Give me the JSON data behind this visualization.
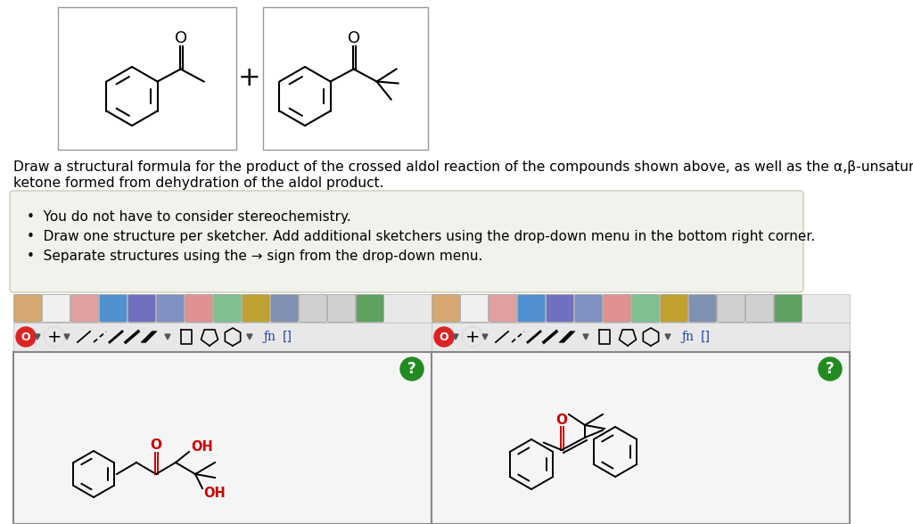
{
  "bg_color": "#ffffff",
  "text_color": "#000000",
  "red_color": "#cc0000",
  "instruction_line1": "Draw a structural formula for the product of the crossed aldol reaction of the compounds shown above, as well as the α,β-unsaturated aldehyde or",
  "instruction_line2": "ketone formed from dehydration of the aldol product.",
  "bullet1": "•  You do not have to consider stereochemistry.",
  "bullet2": "•  Draw one structure per sketcher. Add additional sketchers using the drop-down menu in the bottom right corner.",
  "bullet3": "•  Separate structures using the → sign from the drop-down menu.",
  "hint_box_color": "#f2f2ec",
  "hint_box_border": "#ccccbb",
  "toolbar_bg": "#e8e8e8",
  "toolbar_border": "#bbbbbb",
  "panel_bg": "#f5f5f5",
  "panel_border": "#888888"
}
